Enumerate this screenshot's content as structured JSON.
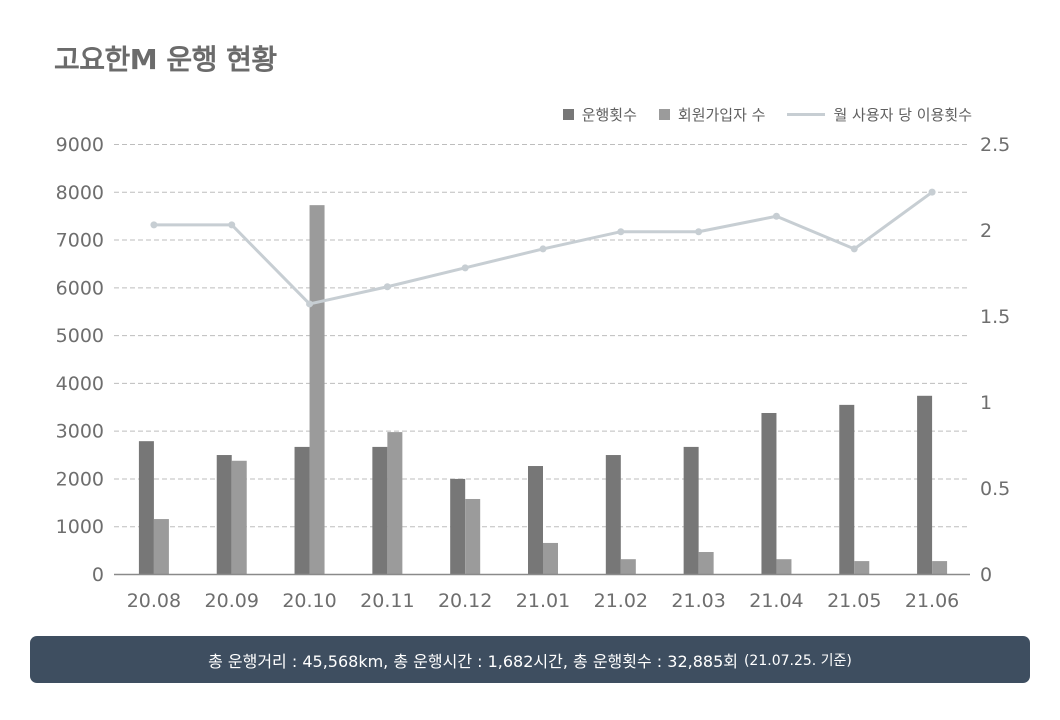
{
  "title": "고요한M 운행 현황",
  "legend": {
    "series1": "운행횟수",
    "series2": "회원가입자 수",
    "series3": "월 사용자 당 이용횟수"
  },
  "colors": {
    "series1": "#777777",
    "series2": "#9b9b9b",
    "series3": "#c7ced3",
    "footer_bg": "#3e4e60"
  },
  "footer": {
    "summary": "총 운행거리 : 45,568km, 총 운행시간 : 1,682시간, 총 운행횟수 : 32,885회",
    "note": "(21.07.25. 기준)"
  },
  "chart_data": {
    "type": "bar+line",
    "title": "고요한M 운행 현황",
    "categories": [
      "20.08",
      "20.09",
      "20.10",
      "20.11",
      "20.12",
      "21.01",
      "21.02",
      "21.03",
      "21.04",
      "21.05",
      "21.06"
    ],
    "series": [
      {
        "name": "운행횟수",
        "type": "bar",
        "axis": "left",
        "values": [
          2780,
          2490,
          2660,
          2660,
          1990,
          2260,
          2490,
          2660,
          3370,
          3540,
          3730
        ]
      },
      {
        "name": "회원가입자 수",
        "type": "bar",
        "axis": "left",
        "values": [
          1150,
          2370,
          7720,
          2970,
          1570,
          650,
          310,
          460,
          310,
          270,
          270
        ]
      },
      {
        "name": "월 사용자 당 이용횟수",
        "type": "line",
        "axis": "right",
        "values": [
          2.03,
          2.03,
          1.57,
          1.67,
          1.78,
          1.89,
          1.99,
          1.99,
          2.08,
          1.89,
          2.22
        ]
      }
    ],
    "y_left": {
      "min": 0,
      "max": 9000,
      "ticks": [
        0,
        1000,
        2000,
        3000,
        4000,
        5000,
        6000,
        7000,
        8000,
        9000
      ]
    },
    "y_right": {
      "min": 0,
      "max": 2.5,
      "ticks": [
        "0",
        "0.5",
        "1",
        "1.5",
        "2",
        "2.5"
      ]
    },
    "grid": "dashed horizontal",
    "legend_position": "top-right"
  }
}
